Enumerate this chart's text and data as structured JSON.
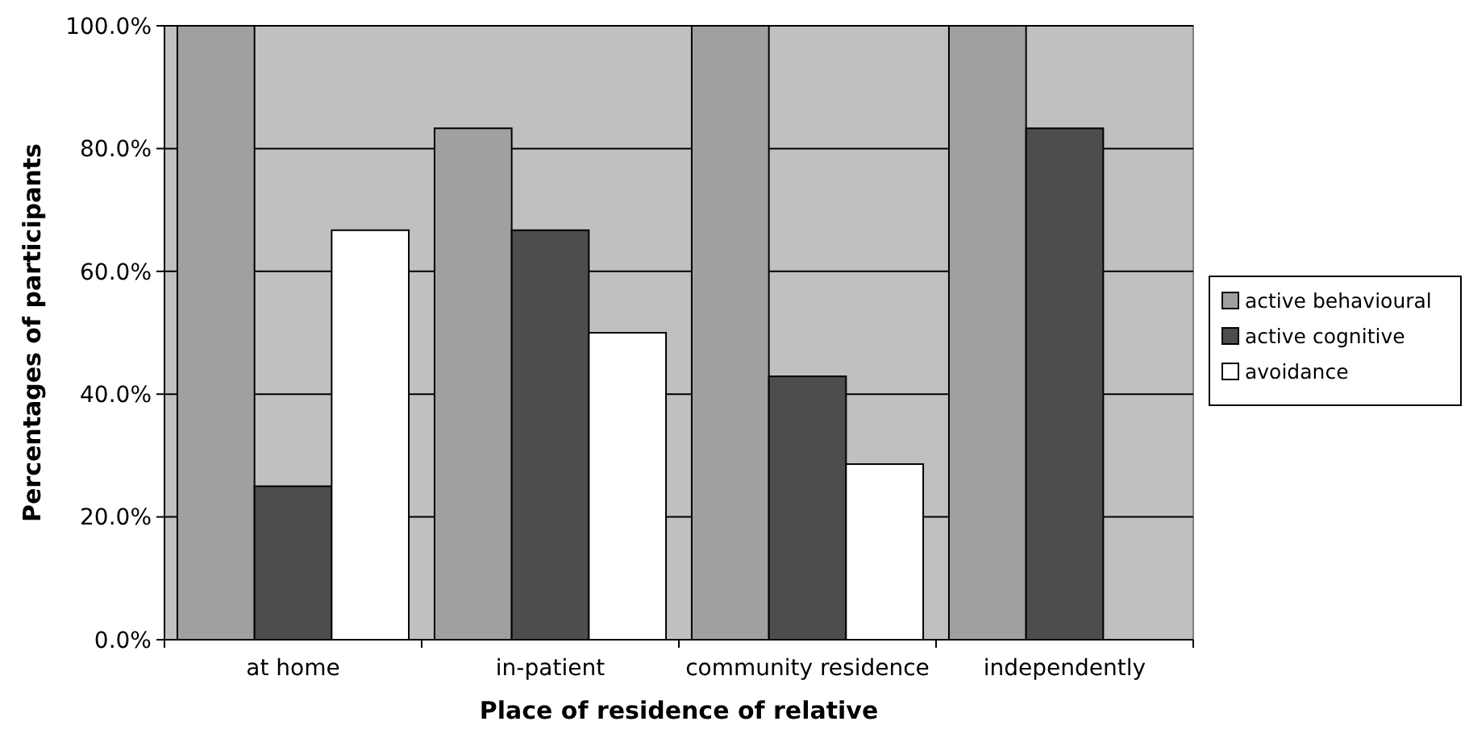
{
  "chart_data": {
    "type": "bar",
    "xlabel": "Place of residence of relative",
    "ylabel": "Percentages of participants",
    "categories": [
      "at home",
      "in-patient",
      "community residence",
      "independently"
    ],
    "series": [
      {
        "name": "active behavioural",
        "color": "#a0a0a0",
        "values": [
          100,
          83.3,
          100,
          100
        ]
      },
      {
        "name": "active cognitive",
        "color": "#4d4d4d",
        "values": [
          25,
          66.7,
          42.9,
          83.3
        ]
      },
      {
        "name": "avoidance",
        "color": "#ffffff",
        "values": [
          66.7,
          50,
          28.6,
          0
        ]
      }
    ],
    "ylim": [
      0,
      100
    ],
    "yticks": [
      {
        "value": 0,
        "label": "0.0%"
      },
      {
        "value": 20,
        "label": "20.0%"
      },
      {
        "value": 40,
        "label": "40.0%"
      },
      {
        "value": 60,
        "label": "60.0%"
      },
      {
        "value": 80,
        "label": "80.0%"
      },
      {
        "value": 100,
        "label": "100.0%"
      }
    ],
    "grid": "y",
    "legend": "right"
  }
}
